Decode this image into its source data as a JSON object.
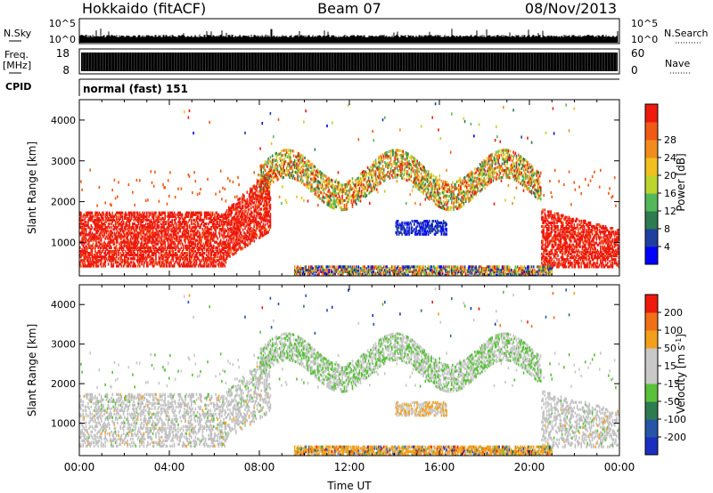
{
  "header": {
    "station": "Hokkaido (fitACF)",
    "beam": "Beam 07",
    "date": "08/Nov/2013"
  },
  "strips": {
    "nsky_label": "N.Sky",
    "nsky_ticks": [
      "10^5",
      "10^0"
    ],
    "nsearch_label": "N.Search",
    "nsearch_ticks": [
      "10^5",
      "10^0"
    ],
    "freq_label": "Freq.",
    "freq_unit": "[MHz]",
    "freq_ticks": [
      "18",
      "8"
    ],
    "nave_label": "Nave",
    "nave_ticks": [
      "60",
      "0"
    ],
    "cpid_label": "CPID",
    "cpid_text": "normal (fast) 151"
  },
  "colors": {
    "power": [
      "#0000ff",
      "#1f3fa0",
      "#2e7b4f",
      "#52b85a",
      "#bdd42e",
      "#f0c020",
      "#f28c1c",
      "#f05a14",
      "#ee1a0e"
    ],
    "velocity": [
      "#1a2fc0",
      "#2655a8",
      "#2e7b4f",
      "#59c13a",
      "#c8c8c8",
      "#c8c8c8",
      "#f2a01c",
      "#f07018",
      "#ee1a0e"
    ]
  },
  "chart_data": [
    {
      "type": "heatmap",
      "name": "power",
      "ylabel": "Slant Range [km]",
      "xlabel": "",
      "yticks": [
        "1000",
        "2000",
        "3000",
        "4000"
      ],
      "ylim": [
        180,
        4500
      ],
      "xlim_hours": [
        0,
        24
      ],
      "colorbar_label": "Power [dB]",
      "colorbar_ticks": [
        "4",
        "8",
        "12",
        "16",
        "20",
        "24",
        "28"
      ],
      "clim": [
        0,
        32
      ]
    },
    {
      "type": "heatmap",
      "name": "velocity",
      "ylabel": "Slant Range [km]",
      "xlabel": "Time UT",
      "yticks": [
        "1000",
        "2000",
        "3000",
        "4000"
      ],
      "ylim": [
        180,
        4500
      ],
      "xlim_hours": [
        0,
        24
      ],
      "xticks": [
        "00:00",
        "04:00",
        "08:00",
        "12:00",
        "16:00",
        "20:00",
        "00:00"
      ],
      "colorbar_label": "Velocity [m s",
      "colorbar_label_sup": "-1",
      "colorbar_label_end": "]",
      "colorbar_ticks": [
        "200",
        "100",
        "50",
        "15",
        "-15",
        "-50",
        "-100",
        "-200"
      ]
    }
  ]
}
